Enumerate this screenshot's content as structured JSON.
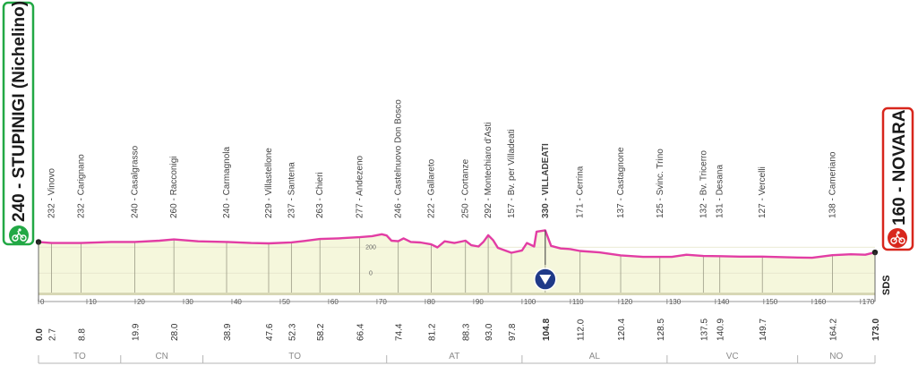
{
  "start": {
    "label": "240 - STUPINIGI (Nichelino)",
    "icon": "cyclist-icon",
    "color": "#22a845"
  },
  "finish": {
    "label": "160 - NOVARA",
    "icon": "cyclist-icon",
    "color": "#d8261c"
  },
  "gpm": {
    "label": "330 - VILLADEATI",
    "icon": "triangle-down-icon",
    "color": "#1f3a88"
  },
  "brand": "SDS",
  "colors": {
    "profile": "#e23da4",
    "fill": "#f5f7dc",
    "ground": "#d7d7b5",
    "start": "#22a845",
    "finish": "#d8261c",
    "gpm": "#1f3a88"
  },
  "chart_data": {
    "type": "area",
    "xlabel": "",
    "ylabel": "",
    "xlim": [
      0,
      173
    ],
    "ylim": [
      -150,
      450
    ],
    "x_ticks": [
      0,
      10,
      20,
      30,
      40,
      50,
      60,
      70,
      80,
      90,
      100,
      110,
      120,
      130,
      140,
      150,
      160,
      170
    ],
    "y_ticks": [
      0,
      200
    ],
    "profile": {
      "x": [
        0,
        2.7,
        8.8,
        15,
        19.9,
        25,
        28.0,
        33,
        38.9,
        44,
        47.6,
        52.3,
        55,
        58.2,
        62,
        66.4,
        69,
        71,
        72,
        73,
        74.4,
        75.5,
        77,
        79,
        81.2,
        82.5,
        84,
        86,
        88.3,
        89.5,
        91,
        92,
        93.0,
        94,
        95,
        97.8,
        100,
        101,
        102.5,
        103,
        104.8,
        106,
        108,
        110,
        112.0,
        116,
        120.4,
        125,
        128.5,
        131,
        134,
        137.5,
        140.9,
        145,
        149.7,
        155,
        160,
        164.2,
        168,
        171,
        173.0
      ],
      "y": [
        240,
        232,
        232,
        240,
        240,
        250,
        260,
        245,
        240,
        232,
        229,
        237,
        248,
        263,
        268,
        277,
        285,
        300,
        290,
        250,
        246,
        268,
        240,
        236,
        222,
        198,
        245,
        232,
        250,
        215,
        205,
        240,
        292,
        255,
        195,
        157,
        175,
        232,
        205,
        320,
        330,
        210,
        190,
        185,
        171,
        160,
        137,
        125,
        125,
        125,
        142,
        132,
        131,
        127,
        127,
        122,
        118,
        138,
        145,
        142,
        160
      ]
    },
    "places": [
      {
        "name": "Vinovo",
        "altitude": 232,
        "km": 2.7
      },
      {
        "name": "Carignano",
        "altitude": 232,
        "km": 8.8
      },
      {
        "name": "Casalgrasso",
        "altitude": 240,
        "km": 19.9
      },
      {
        "name": "Racconigi",
        "altitude": 260,
        "km": 28.0
      },
      {
        "name": "Carmagnola",
        "altitude": 240,
        "km": 38.9
      },
      {
        "name": "Villastellone",
        "altitude": 229,
        "km": 47.6
      },
      {
        "name": "Santena",
        "altitude": 237,
        "km": 52.3
      },
      {
        "name": "Chieri",
        "altitude": 263,
        "km": 58.2
      },
      {
        "name": "Andezeno",
        "altitude": 277,
        "km": 66.4
      },
      {
        "name": "Castelnuovo Don Bosco",
        "altitude": 246,
        "km": 74.4
      },
      {
        "name": "Gallareto",
        "altitude": 222,
        "km": 81.2
      },
      {
        "name": "Cortanze",
        "altitude": 250,
        "km": 88.3
      },
      {
        "name": "Montechiaro d'Asti",
        "altitude": 292,
        "km": 93.0
      },
      {
        "name": "Bv. per Villadeati",
        "altitude": 157,
        "km": 97.8
      },
      {
        "name": "VILLADEATI",
        "altitude": 330,
        "km": 104.8
      },
      {
        "name": "Cerrina",
        "altitude": 171,
        "km": 112.0
      },
      {
        "name": "Castagnone",
        "altitude": 137,
        "km": 120.4
      },
      {
        "name": "Svinc. Trino",
        "altitude": 125,
        "km": 128.5
      },
      {
        "name": "Bv. Tricerro",
        "altitude": 132,
        "km": 137.5
      },
      {
        "name": "Desana",
        "altitude": 131,
        "km": 140.9
      },
      {
        "name": "Vercelli",
        "altitude": 127,
        "km": 149.7
      },
      {
        "name": "Cameriano",
        "altitude": 138,
        "km": 164.2
      }
    ],
    "km_labels": [
      "0.0",
      "2.7",
      "8.8",
      "19.9",
      "28.0",
      "38.9",
      "47.6",
      "52.3",
      "58.2",
      "66.4",
      "74.4",
      "81.2",
      "88.3",
      "93.0",
      "97.8",
      "104.8",
      "112.0",
      "120.4",
      "128.5",
      "137.5",
      "140.9",
      "149.7",
      "164.2",
      "173.0"
    ],
    "regions": [
      {
        "name": "TO",
        "from": 0,
        "to": 17
      },
      {
        "name": "CN",
        "from": 17,
        "to": 34
      },
      {
        "name": "TO",
        "from": 34,
        "to": 72
      },
      {
        "name": "AT",
        "from": 72,
        "to": 100
      },
      {
        "name": "AL",
        "from": 100,
        "to": 130
      },
      {
        "name": "VC",
        "from": 130,
        "to": 157
      },
      {
        "name": "NO",
        "from": 157,
        "to": 173
      }
    ]
  }
}
